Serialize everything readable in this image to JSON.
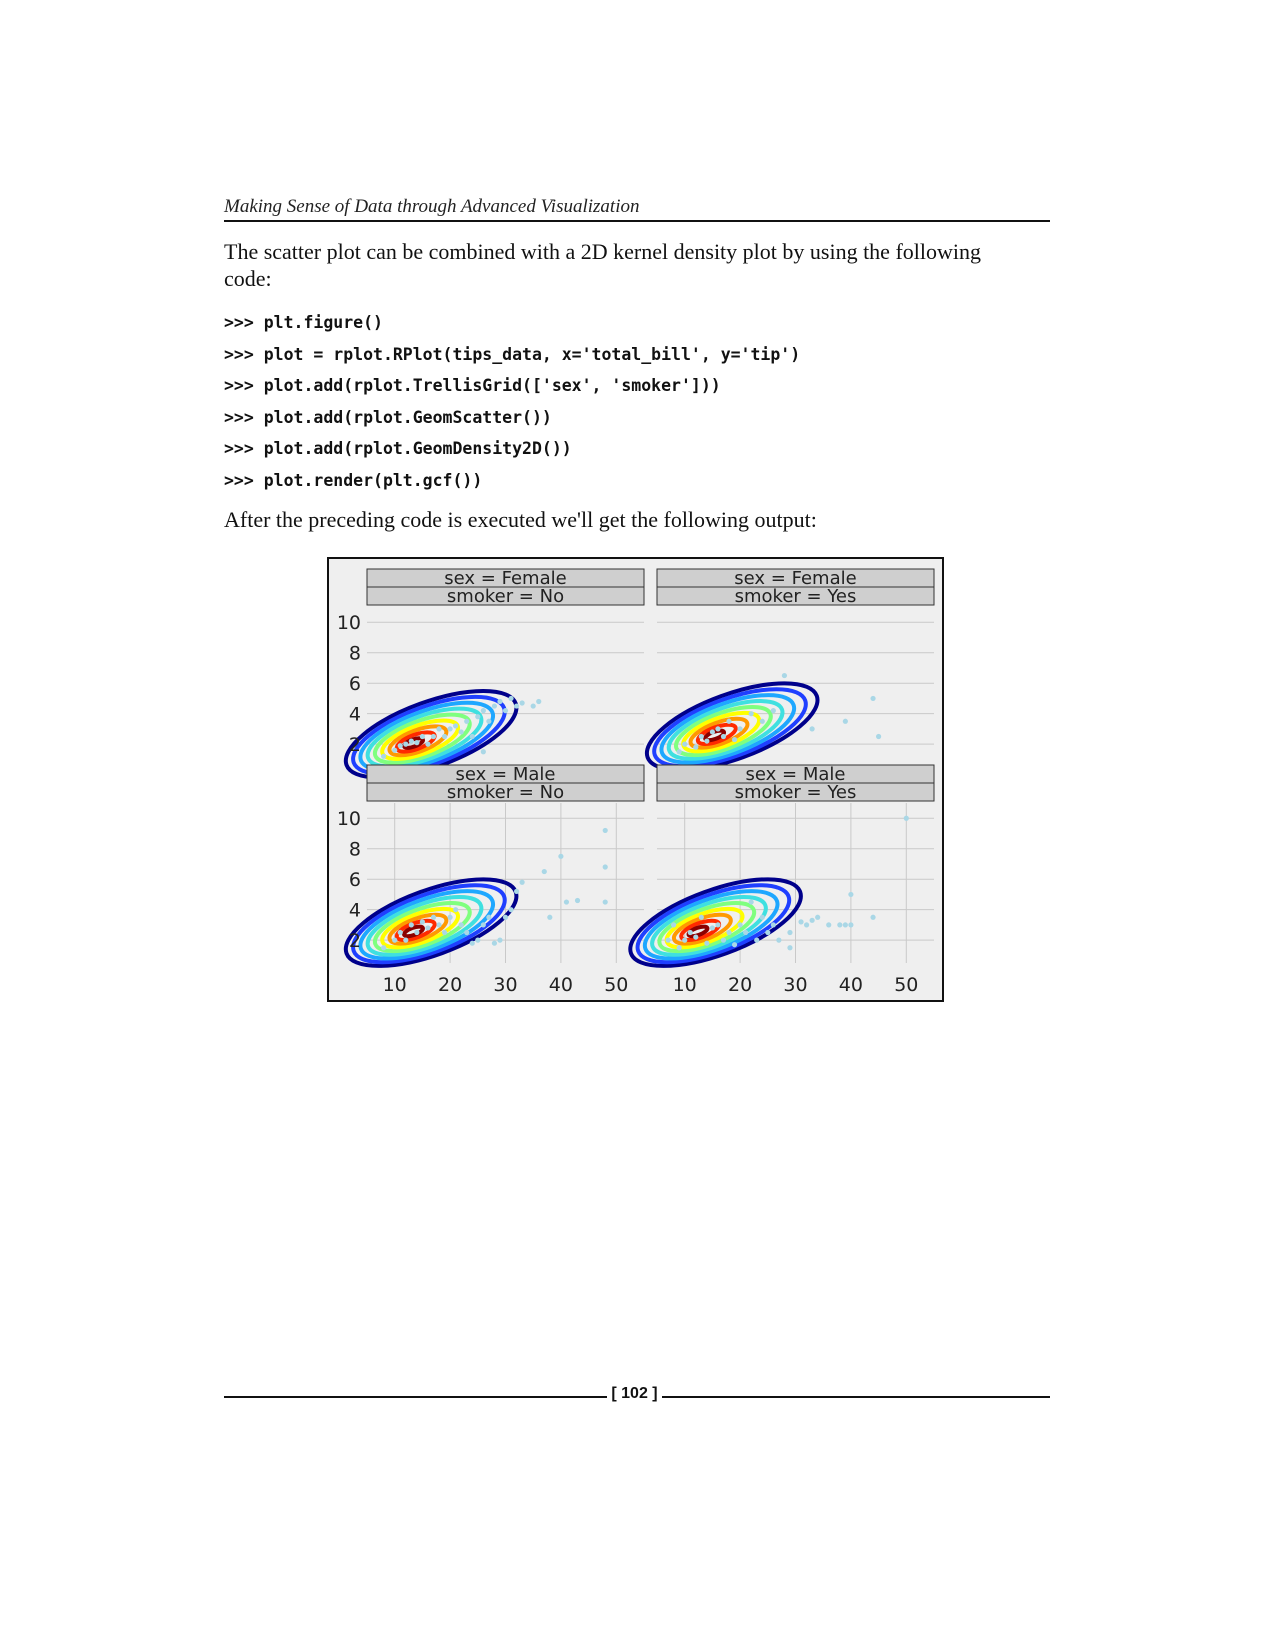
{
  "running_header": "Making Sense of Data through Advanced Visualization",
  "intro_text": "The scatter plot can be combined with a 2D kernel density plot by using the following code:",
  "code_lines": [
    ">>> plt.figure()",
    ">>> plot = rplot.RPlot(tips_data, x='total_bill', y='tip')",
    ">>> plot.add(rplot.TrellisGrid(['sex', 'smoker']))",
    ">>> plot.add(rplot.GeomScatter())",
    ">>> plot.add(rplot.GeomDensity2D())",
    ">>> plot.render(plt.gcf())"
  ],
  "outro_text": "After the preceding code is executed we'll get the following output:",
  "page_number": "[ 102 ]",
  "chart_data": {
    "type": "scatter",
    "subtype": "trellis scatter with 2D kernel density contours",
    "xlim": [
      5,
      55
    ],
    "ylim": [
      0.5,
      11
    ],
    "x_ticks": [
      "10",
      "20",
      "30",
      "40",
      "50"
    ],
    "y_ticks": [
      "10",
      "8",
      "6",
      "4",
      "2"
    ],
    "grid": true,
    "contour_colormap": [
      "#00008b",
      "#1f3fff",
      "#1ea7ff",
      "#3fe0e0",
      "#7fff7f",
      "#ffff00",
      "#ff9900",
      "#ff2a00",
      "#8b0000"
    ],
    "point_color": "#a9d7e6",
    "panels": [
      {
        "row_label": "sex = Female",
        "col_label": "smoker = No",
        "density_peak": [
          13,
          2.0
        ],
        "points": [
          [
            8,
            1.2
          ],
          [
            10,
            1.6
          ],
          [
            11,
            1.9
          ],
          [
            12,
            2.0
          ],
          [
            13,
            2.2
          ],
          [
            14,
            2.1
          ],
          [
            15,
            2.5
          ],
          [
            16,
            2.0
          ],
          [
            17,
            2.5
          ],
          [
            18,
            3.0
          ],
          [
            19,
            2.5
          ],
          [
            20,
            3.0
          ],
          [
            21,
            3.2
          ],
          [
            22,
            2.8
          ],
          [
            23,
            3.5
          ],
          [
            24,
            2.5
          ],
          [
            25,
            3.8
          ],
          [
            26,
            4.2
          ],
          [
            27,
            3.5
          ],
          [
            28,
            4.5
          ],
          [
            29,
            4.8
          ],
          [
            30,
            4.2
          ],
          [
            31,
            5.0
          ],
          [
            32,
            4.5
          ],
          [
            33,
            4.7
          ],
          [
            35,
            4.5
          ],
          [
            36,
            4.8
          ],
          [
            26,
            1.5
          ]
        ]
      },
      {
        "row_label": "sex = Female",
        "col_label": "smoker = Yes",
        "density_peak": [
          15,
          2.5
        ],
        "points": [
          [
            9,
            1.5
          ],
          [
            10,
            2.0
          ],
          [
            12,
            1.8
          ],
          [
            13,
            2.5
          ],
          [
            14,
            2.2
          ],
          [
            15,
            2.8
          ],
          [
            16,
            3.0
          ],
          [
            17,
            2.5
          ],
          [
            18,
            3.5
          ],
          [
            19,
            2.3
          ],
          [
            20,
            3.0
          ],
          [
            22,
            4.0
          ],
          [
            24,
            3.5
          ],
          [
            26,
            4.2
          ],
          [
            28,
            6.5
          ],
          [
            33,
            3.0
          ],
          [
            39,
            3.5
          ],
          [
            44,
            5.0
          ],
          [
            45,
            2.5
          ]
        ]
      },
      {
        "row_label": "sex = Male",
        "col_label": "smoker = No",
        "density_peak": [
          13,
          2.5
        ],
        "points": [
          [
            8,
            1.5
          ],
          [
            10,
            2.0
          ],
          [
            11,
            2.5
          ],
          [
            12,
            2.0
          ],
          [
            13,
            3.0
          ],
          [
            14,
            2.5
          ],
          [
            15,
            3.2
          ],
          [
            16,
            2.8
          ],
          [
            17,
            3.5
          ],
          [
            18,
            3.0
          ],
          [
            19,
            2.5
          ],
          [
            20,
            3.5
          ],
          [
            21,
            4.0
          ],
          [
            22,
            3.0
          ],
          [
            23,
            2.5
          ],
          [
            24,
            1.8
          ],
          [
            25,
            2.0
          ],
          [
            26,
            3.0
          ],
          [
            27,
            3.5
          ],
          [
            28,
            1.8
          ],
          [
            29,
            2.0
          ],
          [
            30,
            3.5
          ],
          [
            31,
            4.0
          ],
          [
            32,
            5.2
          ],
          [
            33,
            5.8
          ],
          [
            37,
            6.5
          ],
          [
            38,
            3.5
          ],
          [
            40,
            7.5
          ],
          [
            41,
            4.5
          ],
          [
            43,
            4.6
          ],
          [
            48,
            4.5
          ],
          [
            48,
            6.8
          ],
          [
            48,
            9.2
          ]
        ]
      },
      {
        "row_label": "sex = Male",
        "col_label": "smoker = Yes",
        "density_peak": [
          12,
          2.5
        ],
        "points": [
          [
            7,
            2.0
          ],
          [
            8,
            3.0
          ],
          [
            9,
            1.5
          ],
          [
            10,
            2.0
          ],
          [
            11,
            2.5
          ],
          [
            12,
            2.2
          ],
          [
            13,
            3.5
          ],
          [
            14,
            1.8
          ],
          [
            15,
            2.8
          ],
          [
            16,
            3.0
          ],
          [
            17,
            2.0
          ],
          [
            18,
            2.5
          ],
          [
            19,
            1.7
          ],
          [
            20,
            3.0
          ],
          [
            21,
            2.5
          ],
          [
            22,
            4.5
          ],
          [
            23,
            2.0
          ],
          [
            24,
            3.5
          ],
          [
            25,
            2.5
          ],
          [
            26,
            3.0
          ],
          [
            27,
            2.0
          ],
          [
            29,
            1.5
          ],
          [
            29,
            2.5
          ],
          [
            31,
            3.2
          ],
          [
            32,
            3.0
          ],
          [
            33,
            3.3
          ],
          [
            34,
            3.5
          ],
          [
            36,
            3.0
          ],
          [
            38,
            3.0
          ],
          [
            39,
            3.0
          ],
          [
            40,
            3.0
          ],
          [
            40,
            5.0
          ],
          [
            44,
            3.5
          ],
          [
            50,
            10.0
          ]
        ]
      }
    ]
  }
}
